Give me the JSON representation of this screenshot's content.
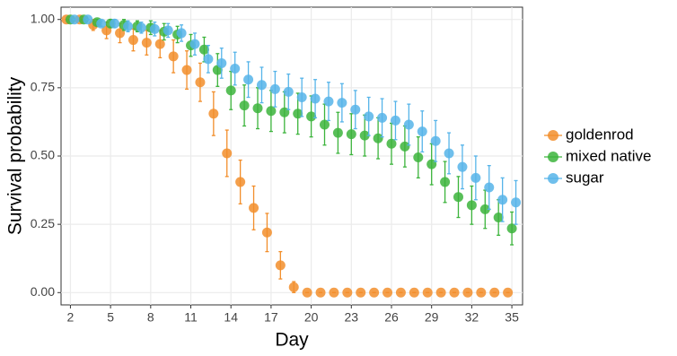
{
  "chart_data": {
    "type": "scatter",
    "xlabel": "Day",
    "ylabel": "Survival probability",
    "x": [
      2,
      3,
      4,
      5,
      6,
      7,
      8,
      9,
      10,
      11,
      12,
      13,
      14,
      15,
      16,
      17,
      18,
      19,
      20,
      21,
      22,
      23,
      24,
      25,
      26,
      27,
      28,
      29,
      30,
      31,
      32,
      33,
      34,
      35
    ],
    "series": [
      {
        "name": "goldenrod",
        "color": "#f28e2b",
        "values": [
          1.0,
          1.0,
          0.98,
          0.96,
          0.95,
          0.925,
          0.915,
          0.91,
          0.865,
          0.815,
          0.77,
          0.655,
          0.51,
          0.405,
          0.31,
          0.22,
          0.1,
          0.02,
          0,
          0,
          0,
          0,
          0,
          0,
          0,
          0,
          0,
          0,
          0,
          0,
          0,
          0,
          0,
          0
        ],
        "errors": [
          0,
          0,
          0.02,
          0.03,
          0.035,
          0.04,
          0.045,
          0.05,
          0.06,
          0.07,
          0.07,
          0.08,
          0.085,
          0.08,
          0.08,
          0.07,
          0.05,
          0.02,
          0,
          0,
          0,
          0,
          0,
          0,
          0,
          0,
          0,
          0,
          0,
          0,
          0,
          0,
          0,
          0
        ]
      },
      {
        "name": "mixed native",
        "color": "#3cb43c",
        "values": [
          1.0,
          1.0,
          0.99,
          0.985,
          0.98,
          0.975,
          0.97,
          0.955,
          0.945,
          0.905,
          0.89,
          0.815,
          0.74,
          0.685,
          0.675,
          0.665,
          0.66,
          0.655,
          0.645,
          0.615,
          0.585,
          0.58,
          0.575,
          0.565,
          0.545,
          0.535,
          0.495,
          0.47,
          0.405,
          0.35,
          0.32,
          0.305,
          0.275,
          0.235
        ],
        "errors": [
          0,
          0,
          0.01,
          0.015,
          0.02,
          0.02,
          0.025,
          0.03,
          0.03,
          0.04,
          0.045,
          0.06,
          0.07,
          0.075,
          0.075,
          0.075,
          0.075,
          0.075,
          0.075,
          0.075,
          0.075,
          0.075,
          0.075,
          0.075,
          0.075,
          0.075,
          0.075,
          0.075,
          0.075,
          0.075,
          0.07,
          0.07,
          0.065,
          0.06
        ]
      },
      {
        "name": "sugar",
        "color": "#56b4e9",
        "values": [
          1.0,
          1.0,
          0.985,
          0.985,
          0.975,
          0.97,
          0.965,
          0.96,
          0.95,
          0.91,
          0.855,
          0.84,
          0.82,
          0.78,
          0.76,
          0.745,
          0.735,
          0.715,
          0.71,
          0.7,
          0.695,
          0.67,
          0.645,
          0.64,
          0.63,
          0.615,
          0.59,
          0.555,
          0.51,
          0.46,
          0.42,
          0.385,
          0.34,
          0.33
        ],
        "errors": [
          0,
          0,
          0.01,
          0.015,
          0.02,
          0.02,
          0.025,
          0.025,
          0.03,
          0.04,
          0.05,
          0.055,
          0.06,
          0.065,
          0.065,
          0.065,
          0.065,
          0.07,
          0.07,
          0.07,
          0.07,
          0.07,
          0.07,
          0.07,
          0.07,
          0.075,
          0.075,
          0.075,
          0.075,
          0.08,
          0.08,
          0.08,
          0.08,
          0.08
        ]
      }
    ],
    "xlim": [
      1.3,
      35.8
    ],
    "xticks": [
      2,
      5,
      8,
      11,
      14,
      17,
      20,
      23,
      26,
      29,
      32,
      35
    ],
    "ylim": [
      -0.045,
      1.045
    ],
    "yticks": [
      {
        "value": 0,
        "label": "0.00"
      },
      {
        "value": 0.25,
        "label": "0.25"
      },
      {
        "value": 0.5,
        "label": "0.50"
      },
      {
        "value": 0.75,
        "label": "0.75"
      },
      {
        "value": 1,
        "label": "1.00"
      }
    ],
    "grid": true,
    "legend": "right"
  }
}
